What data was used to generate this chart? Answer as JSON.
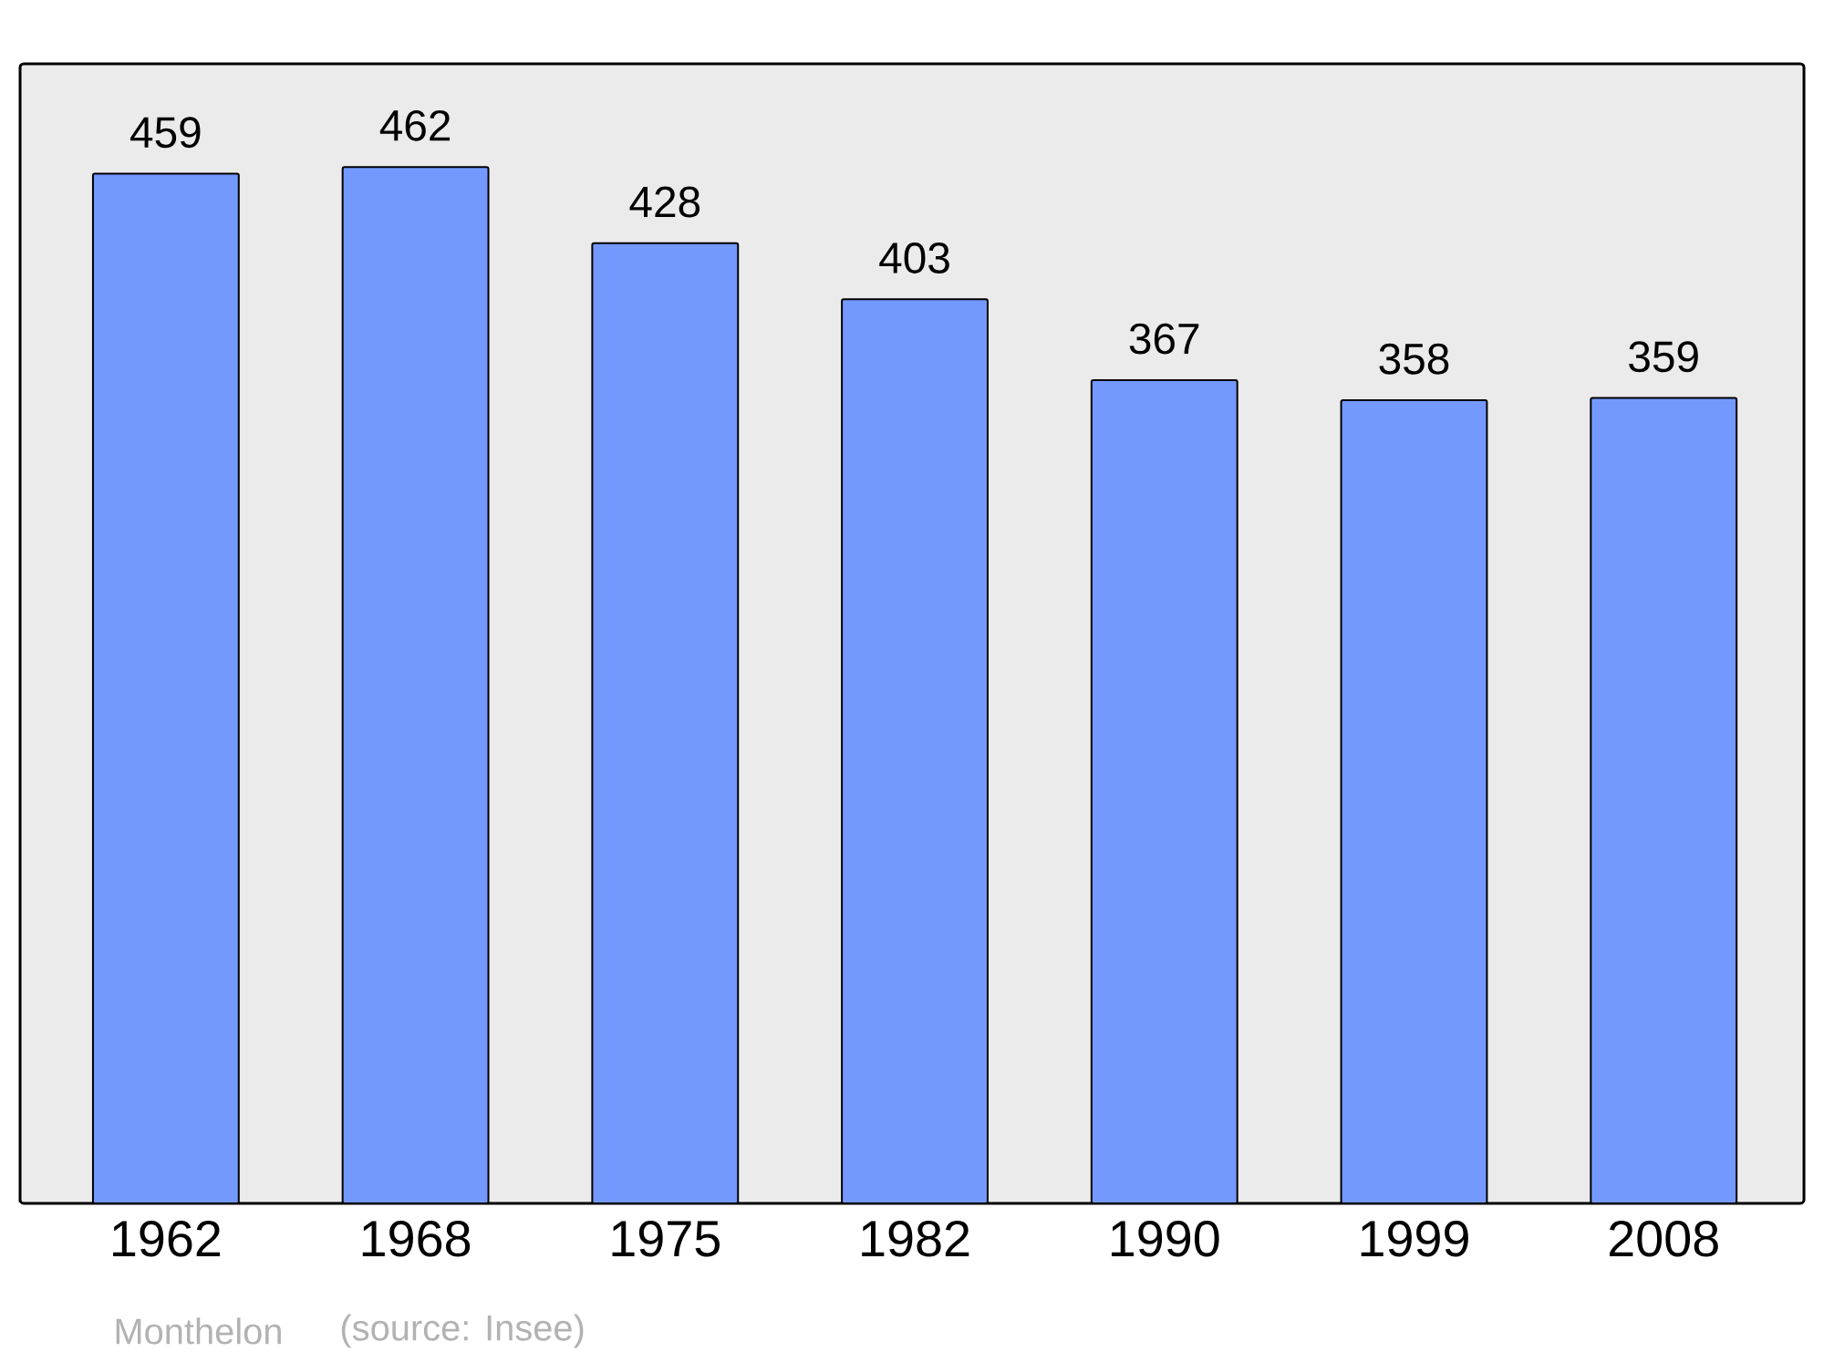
{
  "chart_data": {
    "type": "bar",
    "categories": [
      "1962",
      "1968",
      "1975",
      "1982",
      "1990",
      "1999",
      "2008"
    ],
    "values": [
      459,
      462,
      428,
      403,
      367,
      358,
      359
    ],
    "color": "#7399ff",
    "ylim": [
      0,
      508
    ],
    "data_labels": true,
    "annotations": [
      "Monthelon",
      "(source: Insee)"
    ]
  }
}
